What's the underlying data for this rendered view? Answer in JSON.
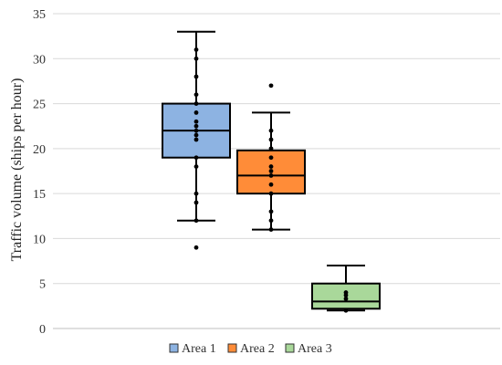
{
  "chart_data": {
    "type": "box",
    "ylabel": "Traffic volume (ships per hour)",
    "xlabel": "",
    "ylim": [
      0,
      35
    ],
    "yticks": [
      "0",
      "5",
      "10",
      "15",
      "20",
      "25",
      "30",
      "35"
    ],
    "grid": true,
    "legend_position": "bottom",
    "series": [
      {
        "name": "Area 1",
        "color": "#8db3e2",
        "min": 12,
        "q1": 19,
        "median": 22,
        "q3": 25,
        "max": 33,
        "points": [
          9,
          12,
          14,
          15,
          18,
          19,
          21,
          21.5,
          22,
          22.5,
          23,
          24,
          25,
          26,
          28,
          30,
          31
        ]
      },
      {
        "name": "Area 2",
        "color": "#ff8c38",
        "min": 11,
        "q1": 15,
        "median": 17,
        "q3": 19.8,
        "max": 24,
        "points": [
          11,
          12,
          13,
          15,
          16,
          17,
          17.5,
          18,
          19,
          20,
          21,
          22,
          27
        ]
      },
      {
        "name": "Area 3",
        "color": "#a9d89a",
        "min": 2,
        "q1": 2.2,
        "median": 3,
        "q3": 5,
        "max": 7,
        "points": [
          2,
          3.3,
          3.7,
          4
        ]
      }
    ]
  }
}
